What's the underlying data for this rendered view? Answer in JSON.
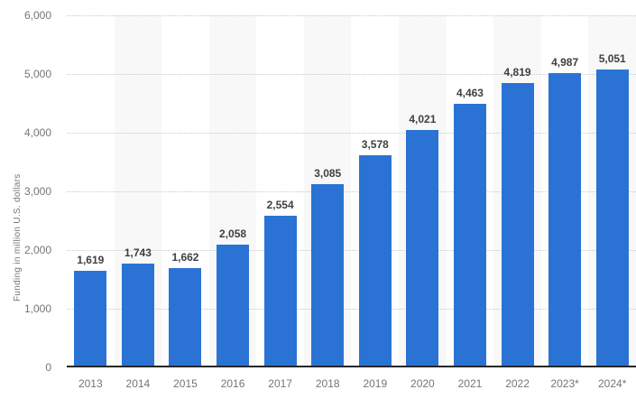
{
  "chart_data": {
    "type": "bar",
    "title": "",
    "ylabel": "Funding in million U.S. dollars",
    "xlabel": "",
    "categories": [
      "2013",
      "2014",
      "2015",
      "2016",
      "2017",
      "2018",
      "2019",
      "2020",
      "2021",
      "2022",
      "2023*",
      "2024*"
    ],
    "values": [
      1619,
      1743,
      1662,
      2058,
      2554,
      3085,
      3578,
      4021,
      4463,
      4819,
      4987,
      5051
    ],
    "value_labels": [
      "1,619",
      "1,743",
      "1,662",
      "2,058",
      "2,554",
      "3,085",
      "3,578",
      "4,021",
      "4,463",
      "4,819",
      "4,987",
      "5,051"
    ],
    "ylim": [
      0,
      6000
    ],
    "y_tick_step": 1000,
    "y_tick_labels": [
      "0",
      "1,000",
      "2,000",
      "3,000",
      "4,000",
      "5,000",
      "6,000"
    ],
    "grid": "horizontal-dotted",
    "legend": "none",
    "band_pattern": "alternating columns, even columns shaded",
    "colors": {
      "bar": "#2a73d5",
      "band": "#f8f8f8",
      "gridline": "#c9c9c9",
      "axis_line": "#262626",
      "tick_label": "#757575",
      "value_label": "#3f3f3f",
      "background": "#ffffff"
    }
  }
}
